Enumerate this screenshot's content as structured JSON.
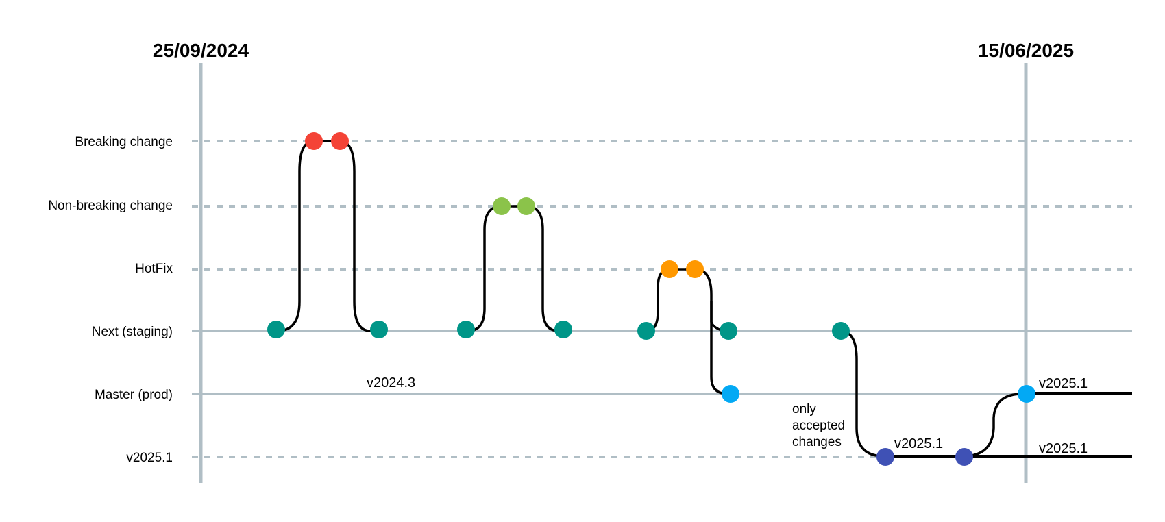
{
  "dates": {
    "start": "25/09/2024",
    "end": "15/06/2025"
  },
  "lanes": [
    {
      "id": "breaking",
      "label": "Breaking change",
      "style": "dashed"
    },
    {
      "id": "nonbreaking",
      "label": "Non-breaking change",
      "style": "dashed"
    },
    {
      "id": "hotfix",
      "label": "HotFix",
      "style": "dashed"
    },
    {
      "id": "next",
      "label": "Next (staging)",
      "style": "solid"
    },
    {
      "id": "master",
      "label": "Master (prod)",
      "style": "solid"
    },
    {
      "id": "release",
      "label": "v2025.1",
      "style": "dashed"
    }
  ],
  "annotations": {
    "master_v2024": "v2024.3",
    "release_mid": "v2025.1",
    "master_end": "v2025.1",
    "release_end": "v2025.1",
    "note_line1": "only",
    "note_line2": "accepted",
    "note_line3": "changes"
  },
  "colors": {
    "grid": "#b0bec5",
    "branch_line": "#000000",
    "breaking": "#f44336",
    "nonbreaking": "#8bc34a",
    "hotfix": "#ff9800",
    "next": "#009688",
    "master": "#03a9f4",
    "release": "#3f51b5"
  },
  "commit_icons": {
    "breaking": "red-commit-dot",
    "nonbreaking": "green-commit-dot",
    "hotfix": "orange-commit-dot",
    "next": "teal-commit-dot",
    "master": "blue-commit-dot",
    "release": "indigo-commit-dot"
  }
}
